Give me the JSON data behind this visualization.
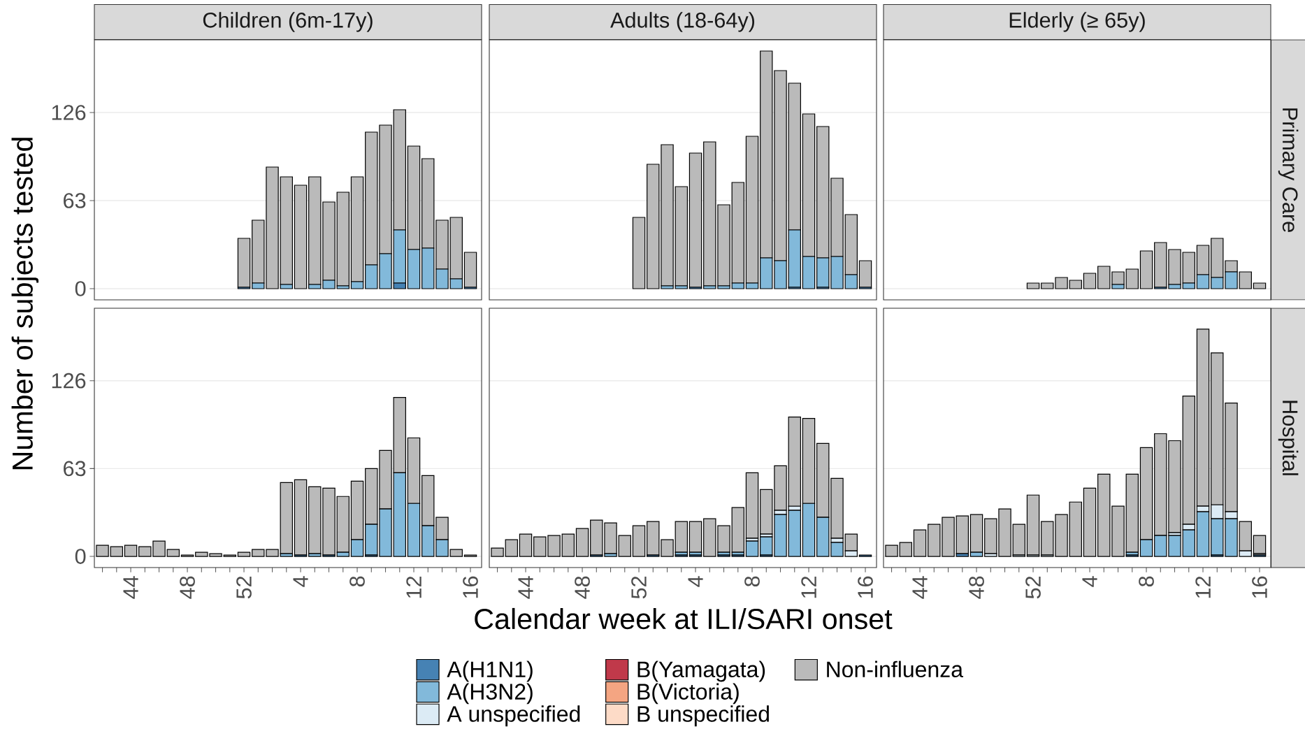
{
  "chart_data": [
    {
      "type": "bar",
      "stacked": true,
      "title": "Children (6m-17y)",
      "categories": [
        null,
        null,
        "44",
        null,
        null,
        null,
        "48",
        null,
        null,
        null,
        "52",
        null,
        null,
        null,
        "4",
        null,
        null,
        null,
        "8",
        null,
        null,
        null,
        "12",
        null,
        null,
        null,
        "16"
      ],
      "ylim": [
        -8,
        178
      ],
      "yticks": [
        0,
        63,
        126
      ],
      "grid": "y",
      "tick_labels": "y",
      "series": [
        {
          "color": "#4682b4",
          "values": [
            null,
            null,
            null,
            null,
            null,
            null,
            null,
            null,
            null,
            null,
            1,
            0,
            0,
            0,
            0,
            0,
            0,
            0,
            0,
            0,
            0,
            4,
            0,
            0,
            0,
            0,
            1
          ]
        },
        {
          "color": "#82b9da",
          "values": [
            null,
            null,
            null,
            null,
            null,
            null,
            null,
            null,
            null,
            null,
            0,
            4,
            0,
            3,
            0,
            3,
            6,
            2,
            5,
            17,
            25,
            38,
            28,
            29,
            14,
            7,
            0
          ]
        },
        {
          "color": "#dcebf5",
          "values": [
            null,
            null,
            null,
            null,
            null,
            null,
            null,
            null,
            null,
            null,
            0,
            0,
            0,
            0,
            0,
            0,
            0,
            0,
            0,
            0,
            0,
            0,
            0,
            0,
            0,
            0,
            0
          ]
        },
        {
          "color": "#c0394a",
          "values": [
            null,
            null,
            null,
            null,
            null,
            null,
            null,
            null,
            null,
            null,
            0,
            0,
            0,
            0,
            0,
            0,
            0,
            0,
            0,
            0,
            0,
            0,
            0,
            0,
            0,
            0,
            0
          ]
        },
        {
          "color": "#f4a582",
          "values": [
            null,
            null,
            null,
            null,
            null,
            null,
            null,
            null,
            null,
            null,
            0,
            0,
            0,
            0,
            0,
            0,
            0,
            0,
            0,
            0,
            0,
            0,
            0,
            0,
            0,
            0,
            0
          ]
        },
        {
          "color": "#fddbc7",
          "values": [
            null,
            null,
            null,
            null,
            null,
            null,
            null,
            null,
            null,
            null,
            0,
            0,
            0,
            0,
            0,
            0,
            0,
            0,
            0,
            0,
            0,
            0,
            0,
            0,
            0,
            0,
            0
          ]
        },
        {
          "color": "#bababa",
          "values": [
            null,
            null,
            null,
            null,
            null,
            null,
            null,
            null,
            null,
            null,
            35,
            45,
            87,
            77,
            74,
            77,
            56,
            67,
            75,
            95,
            92,
            86,
            74,
            64,
            35,
            44,
            25
          ]
        }
      ]
    },
    {
      "type": "bar",
      "stacked": true,
      "title": "Adults (18-64y)",
      "categories": [
        null,
        null,
        "44",
        null,
        null,
        null,
        "48",
        null,
        null,
        null,
        "52",
        null,
        null,
        null,
        "4",
        null,
        null,
        null,
        "8",
        null,
        null,
        null,
        "12",
        null,
        null,
        null,
        "16"
      ],
      "ylim": [
        -8,
        178
      ],
      "yticks": [
        0,
        63,
        126
      ],
      "grid": "y",
      "tick_labels": false,
      "series": [
        {
          "color": "#4682b4",
          "values": [
            null,
            null,
            null,
            null,
            null,
            null,
            null,
            null,
            null,
            null,
            0,
            0,
            0,
            0,
            1,
            0,
            0,
            0,
            0,
            0,
            0,
            1,
            0,
            1,
            0,
            0,
            1
          ]
        },
        {
          "color": "#82b9da",
          "values": [
            null,
            null,
            null,
            null,
            null,
            null,
            null,
            null,
            null,
            null,
            0,
            0,
            2,
            2,
            0,
            2,
            2,
            4,
            4,
            22,
            20,
            41,
            23,
            21,
            23,
            10,
            0
          ]
        },
        {
          "color": "#dcebf5",
          "values": [
            null,
            null,
            null,
            null,
            null,
            null,
            null,
            null,
            null,
            null,
            0,
            0,
            0,
            0,
            0,
            0,
            0,
            0,
            0,
            0,
            0,
            0,
            0,
            0,
            0,
            0,
            0
          ]
        },
        {
          "color": "#c0394a",
          "values": [
            null,
            null,
            null,
            null,
            null,
            null,
            null,
            null,
            null,
            null,
            0,
            0,
            0,
            0,
            0,
            0,
            0,
            0,
            0,
            0,
            0,
            0,
            0,
            0,
            0,
            0,
            0
          ]
        },
        {
          "color": "#f4a582",
          "values": [
            null,
            null,
            null,
            null,
            null,
            null,
            null,
            null,
            null,
            null,
            0,
            0,
            0,
            0,
            0,
            0,
            0,
            0,
            0,
            0,
            0,
            0,
            0,
            0,
            0,
            0,
            0
          ]
        },
        {
          "color": "#fddbc7",
          "values": [
            null,
            null,
            null,
            null,
            null,
            null,
            null,
            null,
            null,
            null,
            0,
            0,
            0,
            0,
            0,
            0,
            0,
            0,
            0,
            0,
            0,
            0,
            0,
            0,
            0,
            0,
            0
          ]
        },
        {
          "color": "#bababa",
          "values": [
            null,
            null,
            null,
            null,
            null,
            null,
            null,
            null,
            null,
            null,
            51,
            89,
            101,
            71,
            96,
            103,
            58,
            72,
            105,
            148,
            136,
            105,
            102,
            94,
            56,
            43,
            19
          ]
        }
      ]
    },
    {
      "type": "bar",
      "stacked": true,
      "title": "Elderly (≥ 65y)",
      "y2label": "Primary Care",
      "categories": [
        null,
        null,
        "44",
        null,
        null,
        null,
        "48",
        null,
        null,
        null,
        "52",
        null,
        null,
        null,
        "4",
        null,
        null,
        null,
        "8",
        null,
        null,
        null,
        "12",
        null,
        null,
        null,
        "16"
      ],
      "ylim": [
        -8,
        178
      ],
      "yticks": [
        0,
        63,
        126
      ],
      "grid": "y",
      "tick_labels": false,
      "series": [
        {
          "color": "#4682b4",
          "values": [
            null,
            null,
            null,
            null,
            null,
            null,
            null,
            null,
            null,
            null,
            0,
            0,
            0,
            0,
            0,
            0,
            0,
            0,
            0,
            1,
            0,
            0,
            0,
            0,
            0,
            0,
            0
          ]
        },
        {
          "color": "#82b9da",
          "values": [
            null,
            null,
            null,
            null,
            null,
            null,
            null,
            null,
            null,
            null,
            0,
            0,
            0,
            0,
            0,
            0,
            3,
            0,
            0,
            0,
            3,
            4,
            10,
            8,
            12,
            0,
            0
          ]
        },
        {
          "color": "#dcebf5",
          "values": [
            null,
            null,
            null,
            null,
            null,
            null,
            null,
            null,
            null,
            null,
            0,
            0,
            0,
            0,
            0,
            0,
            0,
            0,
            0,
            0,
            0,
            0,
            0,
            0,
            0,
            0,
            0
          ]
        },
        {
          "color": "#c0394a",
          "values": [
            null,
            null,
            null,
            null,
            null,
            null,
            null,
            null,
            null,
            null,
            0,
            0,
            0,
            0,
            0,
            0,
            0,
            0,
            0,
            0,
            0,
            0,
            0,
            0,
            0,
            0,
            0
          ]
        },
        {
          "color": "#f4a582",
          "values": [
            null,
            null,
            null,
            null,
            null,
            null,
            null,
            null,
            null,
            null,
            0,
            0,
            0,
            0,
            0,
            0,
            0,
            0,
            0,
            0,
            0,
            0,
            0,
            0,
            0,
            0,
            0
          ]
        },
        {
          "color": "#fddbc7",
          "values": [
            null,
            null,
            null,
            null,
            null,
            null,
            null,
            null,
            null,
            null,
            0,
            0,
            0,
            0,
            0,
            0,
            0,
            0,
            0,
            0,
            0,
            0,
            0,
            0,
            0,
            0,
            0
          ]
        },
        {
          "color": "#bababa",
          "values": [
            null,
            null,
            null,
            null,
            null,
            null,
            null,
            null,
            null,
            null,
            4,
            4,
            8,
            6,
            11,
            16,
            9,
            14,
            27,
            32,
            25,
            22,
            21,
            28,
            8,
            12,
            4
          ]
        }
      ]
    },
    {
      "type": "bar",
      "stacked": true,
      "ylabel": "Number of subjects tested",
      "categories": [
        null,
        null,
        "44",
        null,
        null,
        null,
        "48",
        null,
        null,
        null,
        "52",
        null,
        null,
        null,
        "4",
        null,
        null,
        null,
        "8",
        null,
        null,
        null,
        "12",
        null,
        null,
        null,
        "16"
      ],
      "ylim": [
        -8,
        178
      ],
      "yticks": [
        0,
        63,
        126
      ],
      "grid": "y",
      "series": [
        {
          "color": "#4682b4",
          "values": [
            0,
            0,
            0,
            0,
            0,
            0,
            0,
            0,
            0,
            0,
            0,
            0,
            0,
            0,
            1,
            0,
            1,
            0,
            0,
            1,
            0,
            0,
            0,
            0,
            0,
            0,
            0
          ]
        },
        {
          "color": "#82b9da",
          "values": [
            0,
            0,
            0,
            0,
            0,
            0,
            0,
            0,
            0,
            0,
            0,
            0,
            0,
            2,
            0,
            2,
            0,
            3,
            12,
            22,
            34,
            60,
            38,
            22,
            12,
            0,
            0
          ]
        },
        {
          "color": "#dcebf5",
          "values": [
            0,
            0,
            0,
            0,
            0,
            0,
            0,
            0,
            0,
            0,
            0,
            0,
            0,
            0,
            0,
            0,
            0,
            0,
            0,
            0,
            0,
            0,
            0,
            0,
            0,
            0,
            0
          ]
        },
        {
          "color": "#c0394a",
          "values": [
            0,
            0,
            0,
            0,
            0,
            0,
            0,
            0,
            0,
            0,
            0,
            0,
            0,
            0,
            0,
            0,
            0,
            0,
            0,
            0,
            0,
            0,
            0,
            0,
            0,
            0,
            0
          ]
        },
        {
          "color": "#f4a582",
          "values": [
            0,
            0,
            0,
            0,
            0,
            0,
            0,
            0,
            0,
            0,
            0,
            0,
            0,
            0,
            0,
            0,
            0,
            0,
            0,
            0,
            0,
            0,
            0,
            0,
            0,
            0,
            0
          ]
        },
        {
          "color": "#fddbc7",
          "values": [
            0,
            0,
            0,
            0,
            0,
            0,
            0,
            0,
            0,
            0,
            0,
            0,
            0,
            0,
            0,
            0,
            0,
            0,
            0,
            0,
            0,
            0,
            0,
            0,
            0,
            0,
            0
          ]
        },
        {
          "color": "#bababa",
          "values": [
            8,
            7,
            8,
            7,
            11,
            5,
            1,
            3,
            2,
            1,
            3,
            5,
            5,
            51,
            54,
            48,
            48,
            40,
            42,
            40,
            42,
            54,
            47,
            36,
            16,
            5,
            1
          ]
        }
      ]
    },
    {
      "type": "bar",
      "stacked": true,
      "xlabel": "Calendar week at ILI/SARI onset",
      "legend": "bottom",
      "categories": [
        null,
        null,
        "44",
        null,
        null,
        null,
        "48",
        null,
        null,
        null,
        "52",
        null,
        null,
        null,
        "4",
        null,
        null,
        null,
        "8",
        null,
        null,
        null,
        "12",
        null,
        null,
        null,
        "16"
      ],
      "ylim": [
        -8,
        178
      ],
      "yticks": [
        0,
        63,
        126
      ],
      "grid": "y",
      "tick_labels": "x",
      "series": [
        {
          "name": "A(H1N1)",
          "color": "#4682b4",
          "values": [
            0,
            0,
            0,
            0,
            0,
            0,
            0,
            1,
            0,
            0,
            0,
            1,
            0,
            1,
            1,
            0,
            1,
            1,
            0,
            1,
            0,
            0,
            0,
            0,
            0,
            0,
            1
          ]
        },
        {
          "name": "A(H3N2)",
          "color": "#82b9da",
          "values": [
            0,
            0,
            0,
            0,
            0,
            0,
            0,
            0,
            2,
            0,
            0,
            0,
            0,
            2,
            2,
            0,
            2,
            2,
            11,
            13,
            30,
            33,
            38,
            28,
            10,
            0,
            0
          ]
        },
        {
          "name": "A unspecified",
          "color": "#dcebf5",
          "values": [
            0,
            0,
            0,
            0,
            0,
            0,
            0,
            0,
            0,
            0,
            0,
            0,
            0,
            0,
            0,
            0,
            0,
            0,
            2,
            2,
            3,
            3,
            0,
            0,
            3,
            4,
            0
          ]
        },
        {
          "name": "B(Yamagata)",
          "color": "#c0394a",
          "values": [
            0,
            0,
            0,
            0,
            0,
            0,
            0,
            0,
            0,
            0,
            0,
            0,
            0,
            0,
            0,
            0,
            0,
            0,
            0,
            0,
            0,
            0,
            0,
            0,
            0,
            0,
            0
          ]
        },
        {
          "name": "B(Victoria)",
          "color": "#f4a582",
          "values": [
            0,
            0,
            0,
            0,
            0,
            0,
            0,
            0,
            0,
            0,
            0,
            0,
            0,
            0,
            0,
            0,
            0,
            0,
            0,
            0,
            0,
            0,
            0,
            0,
            0,
            0,
            0
          ]
        },
        {
          "name": "B unspecified",
          "color": "#fddbc7",
          "values": [
            0,
            0,
            0,
            0,
            0,
            0,
            0,
            0,
            0,
            0,
            0,
            0,
            0,
            0,
            0,
            0,
            0,
            0,
            0,
            0,
            0,
            0,
            0,
            0,
            0,
            0,
            0
          ]
        },
        {
          "name": "Non-influenza",
          "color": "#bababa",
          "values": [
            6,
            12,
            16,
            14,
            15,
            16,
            20,
            25,
            22,
            15,
            22,
            24,
            12,
            22,
            22,
            27,
            19,
            32,
            47,
            32,
            32,
            64,
            61,
            53,
            43,
            12,
            0
          ]
        }
      ]
    },
    {
      "type": "bar",
      "stacked": true,
      "y2label": "Hospital",
      "categories": [
        null,
        null,
        "44",
        null,
        null,
        null,
        "48",
        null,
        null,
        null,
        "52",
        null,
        null,
        null,
        "4",
        null,
        null,
        null,
        "8",
        null,
        null,
        null,
        "12",
        null,
        null,
        null,
        "16"
      ],
      "ylim": [
        -8,
        178
      ],
      "yticks": [
        0,
        63,
        126
      ],
      "grid": "y",
      "tick_labels": "x",
      "series": [
        {
          "color": "#4682b4",
          "values": [
            0,
            0,
            0,
            0,
            0,
            2,
            0,
            0,
            0,
            0,
            0,
            0,
            0,
            0,
            0,
            0,
            0,
            1,
            0,
            0,
            0,
            0,
            0,
            1,
            0,
            0,
            1
          ]
        },
        {
          "color": "#82b9da",
          "values": [
            0,
            0,
            0,
            0,
            0,
            0,
            3,
            0,
            0,
            0,
            0,
            0,
            0,
            0,
            0,
            0,
            0,
            2,
            12,
            15,
            15,
            19,
            32,
            26,
            27,
            0,
            0
          ]
        },
        {
          "color": "#dcebf5",
          "values": [
            0,
            0,
            0,
            0,
            0,
            0,
            0,
            2,
            0,
            1,
            1,
            1,
            0,
            0,
            0,
            0,
            0,
            0,
            0,
            0,
            2,
            4,
            4,
            10,
            5,
            4,
            1
          ]
        },
        {
          "color": "#c0394a",
          "values": [
            0,
            0,
            0,
            0,
            0,
            0,
            0,
            0,
            0,
            0,
            0,
            0,
            0,
            0,
            0,
            0,
            0,
            0,
            0,
            0,
            0,
            0,
            0,
            0,
            0,
            0,
            0
          ]
        },
        {
          "color": "#f4a582",
          "values": [
            0,
            0,
            0,
            0,
            0,
            0,
            0,
            0,
            0,
            0,
            0,
            0,
            0,
            0,
            0,
            0,
            0,
            0,
            0,
            0,
            0,
            0,
            0,
            0,
            0,
            0,
            0
          ]
        },
        {
          "color": "#fddbc7",
          "values": [
            0,
            0,
            0,
            0,
            0,
            0,
            0,
            0,
            0,
            0,
            0,
            0,
            0,
            0,
            0,
            0,
            0,
            0,
            0,
            0,
            0,
            0,
            0,
            0,
            0,
            0,
            0
          ]
        },
        {
          "color": "#bababa",
          "values": [
            8,
            10,
            19,
            23,
            28,
            27,
            27,
            25,
            34,
            22,
            43,
            24,
            30,
            39,
            49,
            59,
            36,
            56,
            66,
            73,
            66,
            92,
            127,
            109,
            78,
            21,
            13
          ]
        }
      ]
    }
  ]
}
